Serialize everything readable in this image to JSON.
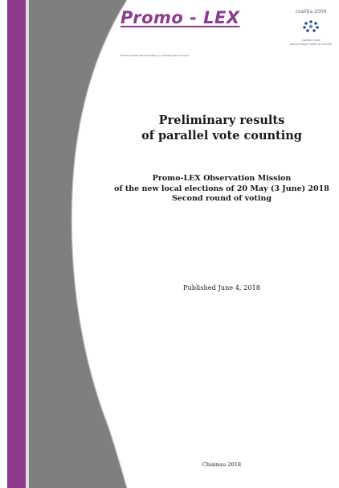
{
  "header": {
    "logo_title": "Promo - LEX",
    "logo_tagline": "Promovarea democrației și a drepturilor omului",
    "coalition_year": "coaliția 2009",
    "coalition_name_line1": "coaliția civică",
    "coalition_name_line2": "pentru alegeri libere și corecte"
  },
  "document": {
    "title_line1": "Preliminary results",
    "title_line2": "of parallel vote counting",
    "subtitle_line1": "Promo-LEX Observation Mission",
    "subtitle_line2": "of the new local elections of 20 May (3 June) 2018",
    "subtitle_line3": "Second round of voting",
    "published": "Published June 4, 2018",
    "place_year": "Chisinau 2018"
  },
  "colors": {
    "purple": "#8e3b8f",
    "gray": "#808080",
    "light_gray": "#c8c8c8"
  }
}
